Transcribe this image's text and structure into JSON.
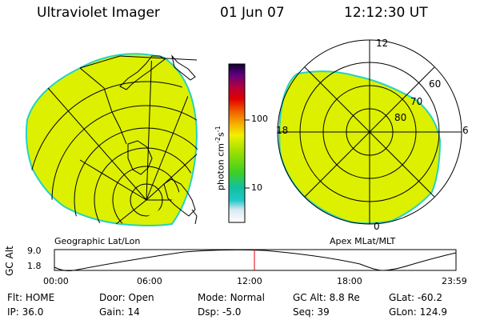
{
  "header": {
    "instrument": "Ultraviolet Imager",
    "date": "01 Jun 07",
    "time": "12:12:30 UT"
  },
  "colors": {
    "aurora_fill": "#dcf000",
    "aurora_edge": "#23d3c3",
    "grid_lines": "#000000",
    "time_marker": "#e00000"
  },
  "geo_panel": {
    "caption": "Geographic Lat/Lon"
  },
  "apex_panel": {
    "caption": "Apex MLat/MLT",
    "mlt_labels": {
      "top": "12",
      "left": "18",
      "right": "6",
      "bottom": "0"
    },
    "lat_labels": [
      "60",
      "70",
      "80"
    ]
  },
  "colorbar": {
    "unit": "photon cm",
    "unit_sup1": "-2",
    "unit_s": "s",
    "unit_sup2": "-1",
    "tick_100": "100",
    "tick_10": "10"
  },
  "orbit_plot": {
    "ylabel": "GC Alt",
    "ymax": "9.0",
    "ymin": "1.8",
    "x_ticks": [
      "00:00",
      "06:00",
      "12:00",
      "18:00",
      "23:59"
    ]
  },
  "status": {
    "row1": [
      {
        "label": "Flt:",
        "value": "HOME"
      },
      {
        "label": "Door:",
        "value": "Open"
      },
      {
        "label": "Mode:",
        "value": "Normal"
      },
      {
        "label": "GC Alt:",
        "value": "8.8 Re"
      },
      {
        "label": "GLat:",
        "value": "-60.2"
      }
    ],
    "row2": [
      {
        "label": "IP:",
        "value": "36.0"
      },
      {
        "label": "Gain:",
        "value": "14"
      },
      {
        "label": "Dsp:",
        "value": "-5.0"
      },
      {
        "label": "Seq:",
        "value": "39"
      },
      {
        "label": "GLon:",
        "value": "124.9"
      }
    ]
  }
}
